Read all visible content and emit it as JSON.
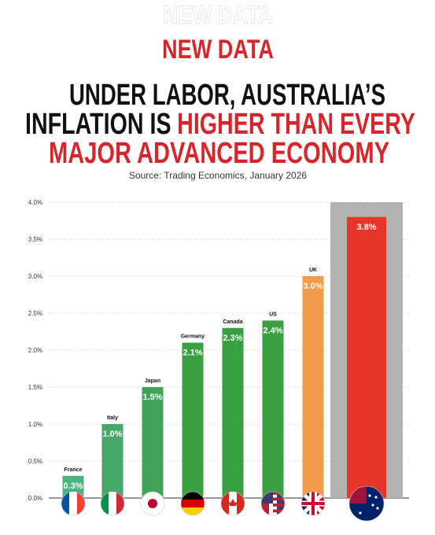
{
  "chart_data": {
    "type": "bar",
    "kicker": "NEW DATA",
    "title_lines": [
      [
        {
          "text": "UNDER LABOR, AUSTRALIA’S",
          "color": "#111111"
        }
      ],
      [
        {
          "text": "INFLATION IS",
          "color": "#111111"
        },
        {
          "text": "HIGHER THAN EVERY",
          "color": "#d8252b"
        }
      ],
      [
        {
          "text": "MAJOR ADVANCED ECONOMY",
          "color": "#d8252b"
        }
      ]
    ],
    "subtitle": "Source: Trading Economics, January 2026",
    "categories": [
      "France",
      "Italy",
      "Japan",
      "Germany",
      "Canada",
      "US",
      "UK",
      null
    ],
    "values": [
      0.3,
      1.0,
      1.5,
      2.1,
      2.3,
      2.4,
      3.0,
      3.8
    ],
    "value_labels": [
      "0.3%",
      "1.0%",
      "1.5%",
      "2.1%",
      "2.3%",
      "2.4%",
      "3.0%",
      "3.8%"
    ],
    "colors": [
      "#4db37e",
      "#45a868",
      "#3fa35a",
      "#38a040",
      "#38a040",
      "#38a040",
      "#f29a4a",
      "#e8352a"
    ],
    "highlight_color": "#b3b3b3",
    "ylim": [
      0,
      4
    ],
    "yticks": [
      {
        "value": 0,
        "label": "0.0%"
      },
      {
        "value": 0.5,
        "label": "0.5%"
      },
      {
        "value": 1,
        "label": "1.0%"
      },
      {
        "value": 1.5,
        "label": "1.5%"
      },
      {
        "value": 2,
        "label": "2.0%"
      },
      {
        "value": 2.5,
        "label": "2.5%"
      },
      {
        "value": 3,
        "label": "3.0%"
      },
      {
        "value": 3.5,
        "label": "3.5%"
      },
      {
        "value": 4,
        "label": "4.0%"
      }
    ],
    "grid": true
  }
}
